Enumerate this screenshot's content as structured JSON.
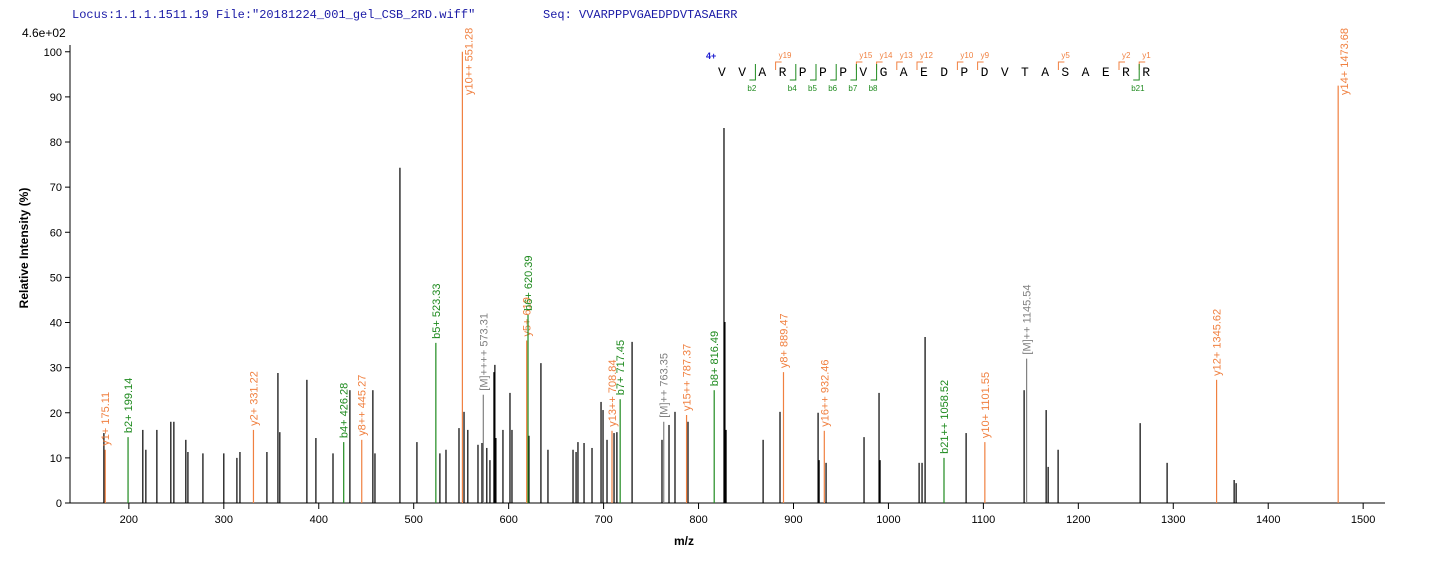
{
  "header": {
    "locus": "Locus:1.1.1.1511.19 File:\"20181224_001_gel_CSB_2RD.wiff\"",
    "seq": "Seq: VVARPPPVGAEDPDVTASAERR"
  },
  "chart_data": {
    "type": "spectrum",
    "y_scale_label": "4.6e+02",
    "ylabel": "Relative  Intensity (%)",
    "xlabel": "m/z",
    "xlim": [
      138,
      1523
    ],
    "ylim": [
      0,
      101.5
    ],
    "xticks": [
      200,
      300,
      400,
      500,
      600,
      700,
      800,
      900,
      1000,
      1100,
      1200,
      1300,
      1400,
      1500
    ],
    "yticks": [
      0,
      10,
      20,
      30,
      40,
      50,
      60,
      70,
      80,
      90,
      100
    ],
    "series": [
      {
        "color": "#000000",
        "x": [
          173.7,
          214.7,
          217.9,
          229.5,
          244.2,
          247.4,
          260.0,
          262.2,
          278.0,
          300.0,
          313.8,
          317.0,
          345.4,
          357.0,
          359.0,
          387.5,
          397.0,
          415.0,
          432.8,
          457.0,
          459.2,
          485.5,
          503.4,
          527.6,
          534.0,
          547.7,
          553.0,
          557.0,
          567.7,
          571.9,
          577.0,
          580.3,
          584.5,
          585.5,
          586.6,
          594.0,
          601.4,
          603.5,
          621.4,
          634.0,
          641.4,
          667.8,
          671.0,
          673.0,
          679.4,
          687.8,
          697.3,
          699.4,
          703.6,
          711.0,
          714.0,
          730.0,
          761.5,
          768.9,
          775.2,
          788.9,
          826.8,
          827.8,
          829.0,
          868.0,
          885.8,
          925.9,
          927.0,
          934.3,
          974.3,
          990.1,
          991.2,
          1032.3,
          1035.4,
          1038.6,
          1081.8,
          1142.9,
          1166.1,
          1168.2,
          1178.7,
          1265.1,
          1293.5,
          1364.1,
          1366.2
        ],
        "values": [
          15.5,
          16.2,
          11.8,
          16.2,
          18,
          18,
          14,
          11.3,
          11,
          11,
          10,
          11.3,
          11.3,
          28.8,
          15.7,
          27.3,
          14.4,
          11,
          25,
          25,
          11,
          74.3,
          13.5,
          11,
          11.8,
          16.6,
          20.2,
          16.2,
          12.9,
          13.3,
          12.2,
          9.5,
          29,
          30.6,
          14.4,
          16.2,
          24.4,
          16.2,
          14.9,
          31,
          11.8,
          11.8,
          11.3,
          13.5,
          13.3,
          12.2,
          22.4,
          20.6,
          14,
          15.5,
          15.7,
          35.7,
          14,
          17.3,
          20.2,
          18,
          83.1,
          40.1,
          16.2,
          14,
          20.2,
          20,
          9.5,
          8.9,
          14.6,
          24.4,
          9.5,
          8.9,
          8.9,
          36.8,
          15.5,
          25,
          20.6,
          8,
          11.8,
          17.7,
          8.9,
          5.1,
          4.4
        ]
      },
      {
        "color": "#f08040",
        "x": [
          175.11,
          331.22,
          445.27,
          551.28,
          619,
          708.84,
          787.37,
          889.47,
          932.46,
          1101.55,
          1345.62,
          1473.68
        ],
        "values": [
          11.8,
          16.2,
          14,
          100,
          36,
          16,
          19.5,
          29,
          16,
          13.5,
          27.3,
          92.5
        ],
        "labels": [
          "y1+ 175.11",
          "y2+ 331.22",
          "y8++ 445.27",
          "y10++ 551.28",
          "y5+ 619",
          "y13++ 708.84",
          "y15++ 787.37",
          "y8+ 889.47",
          "y16++ 932.46",
          "y10+ 1101.55",
          "y12+ 1345.62",
          "y14+ 1473.68"
        ]
      },
      {
        "color": "#1e8a1e",
        "x": [
          199.14,
          426.28,
          523.33,
          620.39,
          717.45,
          816.49,
          1058.52
        ],
        "values": [
          14.6,
          13.5,
          35.5,
          41.7,
          23,
          25,
          10
        ],
        "labels": [
          "b2+ 199.14",
          "b4+ 426.28",
          "b5+ 523.33",
          "b6+ 620.39",
          "b7+ 717.45",
          "b8+ 816.49",
          "b21++ 1058.52"
        ]
      },
      {
        "color": "#808080",
        "x": [
          573.31,
          763.35,
          1145.54
        ],
        "values": [
          24,
          18,
          32
        ],
        "labels": [
          "[M]++++ 573.31",
          "[M]++ 763.35",
          "[M]++ 1145.54"
        ]
      }
    ],
    "sequence_annotation": {
      "charge": "4+",
      "sequence": "VVARPPPVGAEDPDVTASAERR",
      "y_ions": [
        "y19",
        "y15",
        "y14",
        "y13",
        "y12",
        "y10",
        "y9",
        "y5",
        "y2",
        "y1"
      ],
      "b_ions": [
        "b2",
        "b4",
        "b5",
        "b6",
        "b7",
        "b8",
        "b21"
      ]
    }
  }
}
